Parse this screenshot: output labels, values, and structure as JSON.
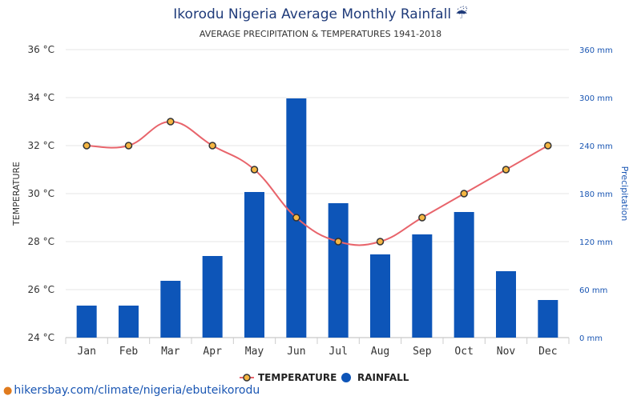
{
  "colors": {
    "rainfall_bar": "#0d55b8",
    "temperature_line": "#e8646b",
    "temperature_marker_fill": "#f5b642",
    "temperature_marker_stroke": "#333333",
    "title": "#1f3b7a",
    "precipitation_axis": "#1a56b3",
    "gridline": "#e6e6e6"
  },
  "icons": {
    "title_icon": "umbrella-rain-icon",
    "source_icon": "location-pin-icon"
  },
  "chart_data": {
    "type": "bar",
    "title": "Ikorodu Nigeria Average Monthly Rainfall ☔",
    "subtitle": "AVERAGE PRECIPITATION & TEMPERATURES 1941-2018",
    "categories": [
      "Jan",
      "Feb",
      "Mar",
      "Apr",
      "May",
      "Jun",
      "Jul",
      "Aug",
      "Sep",
      "Oct",
      "Nov",
      "Dec"
    ],
    "series": [
      {
        "name": "TEMPERATURE",
        "type": "line",
        "axis": "left",
        "values": [
          32,
          32,
          33,
          32,
          31,
          29,
          28,
          28,
          29,
          30,
          31,
          32
        ]
      },
      {
        "name": "RAINFALL",
        "type": "bar",
        "axis": "right",
        "values": [
          40,
          40,
          71,
          102,
          182,
          299,
          168,
          104,
          129,
          157,
          83,
          47
        ]
      }
    ],
    "ylabel": "TEMPERATURE",
    "ylabel_right": "Precipitation",
    "ylim": [
      24,
      36
    ],
    "ylim_right": [
      0,
      360
    ],
    "left_ticks": [
      "24 °C",
      "26 °C",
      "28 °C",
      "30 °C",
      "32 °C",
      "34 °C",
      "36 °C"
    ],
    "right_ticks": [
      "0 mm",
      "60 mm",
      "120 mm",
      "180 mm",
      "240 mm",
      "300 mm",
      "360 mm"
    ],
    "left_tick_values": [
      24,
      26,
      28,
      30,
      32,
      34,
      36
    ],
    "right_tick_values": [
      0,
      60,
      120,
      180,
      240,
      300,
      360
    ],
    "grid": true,
    "legend_position": "bottom-center"
  },
  "source_link": "hikersbay.com/climate/nigeria/ebuteikorodu"
}
